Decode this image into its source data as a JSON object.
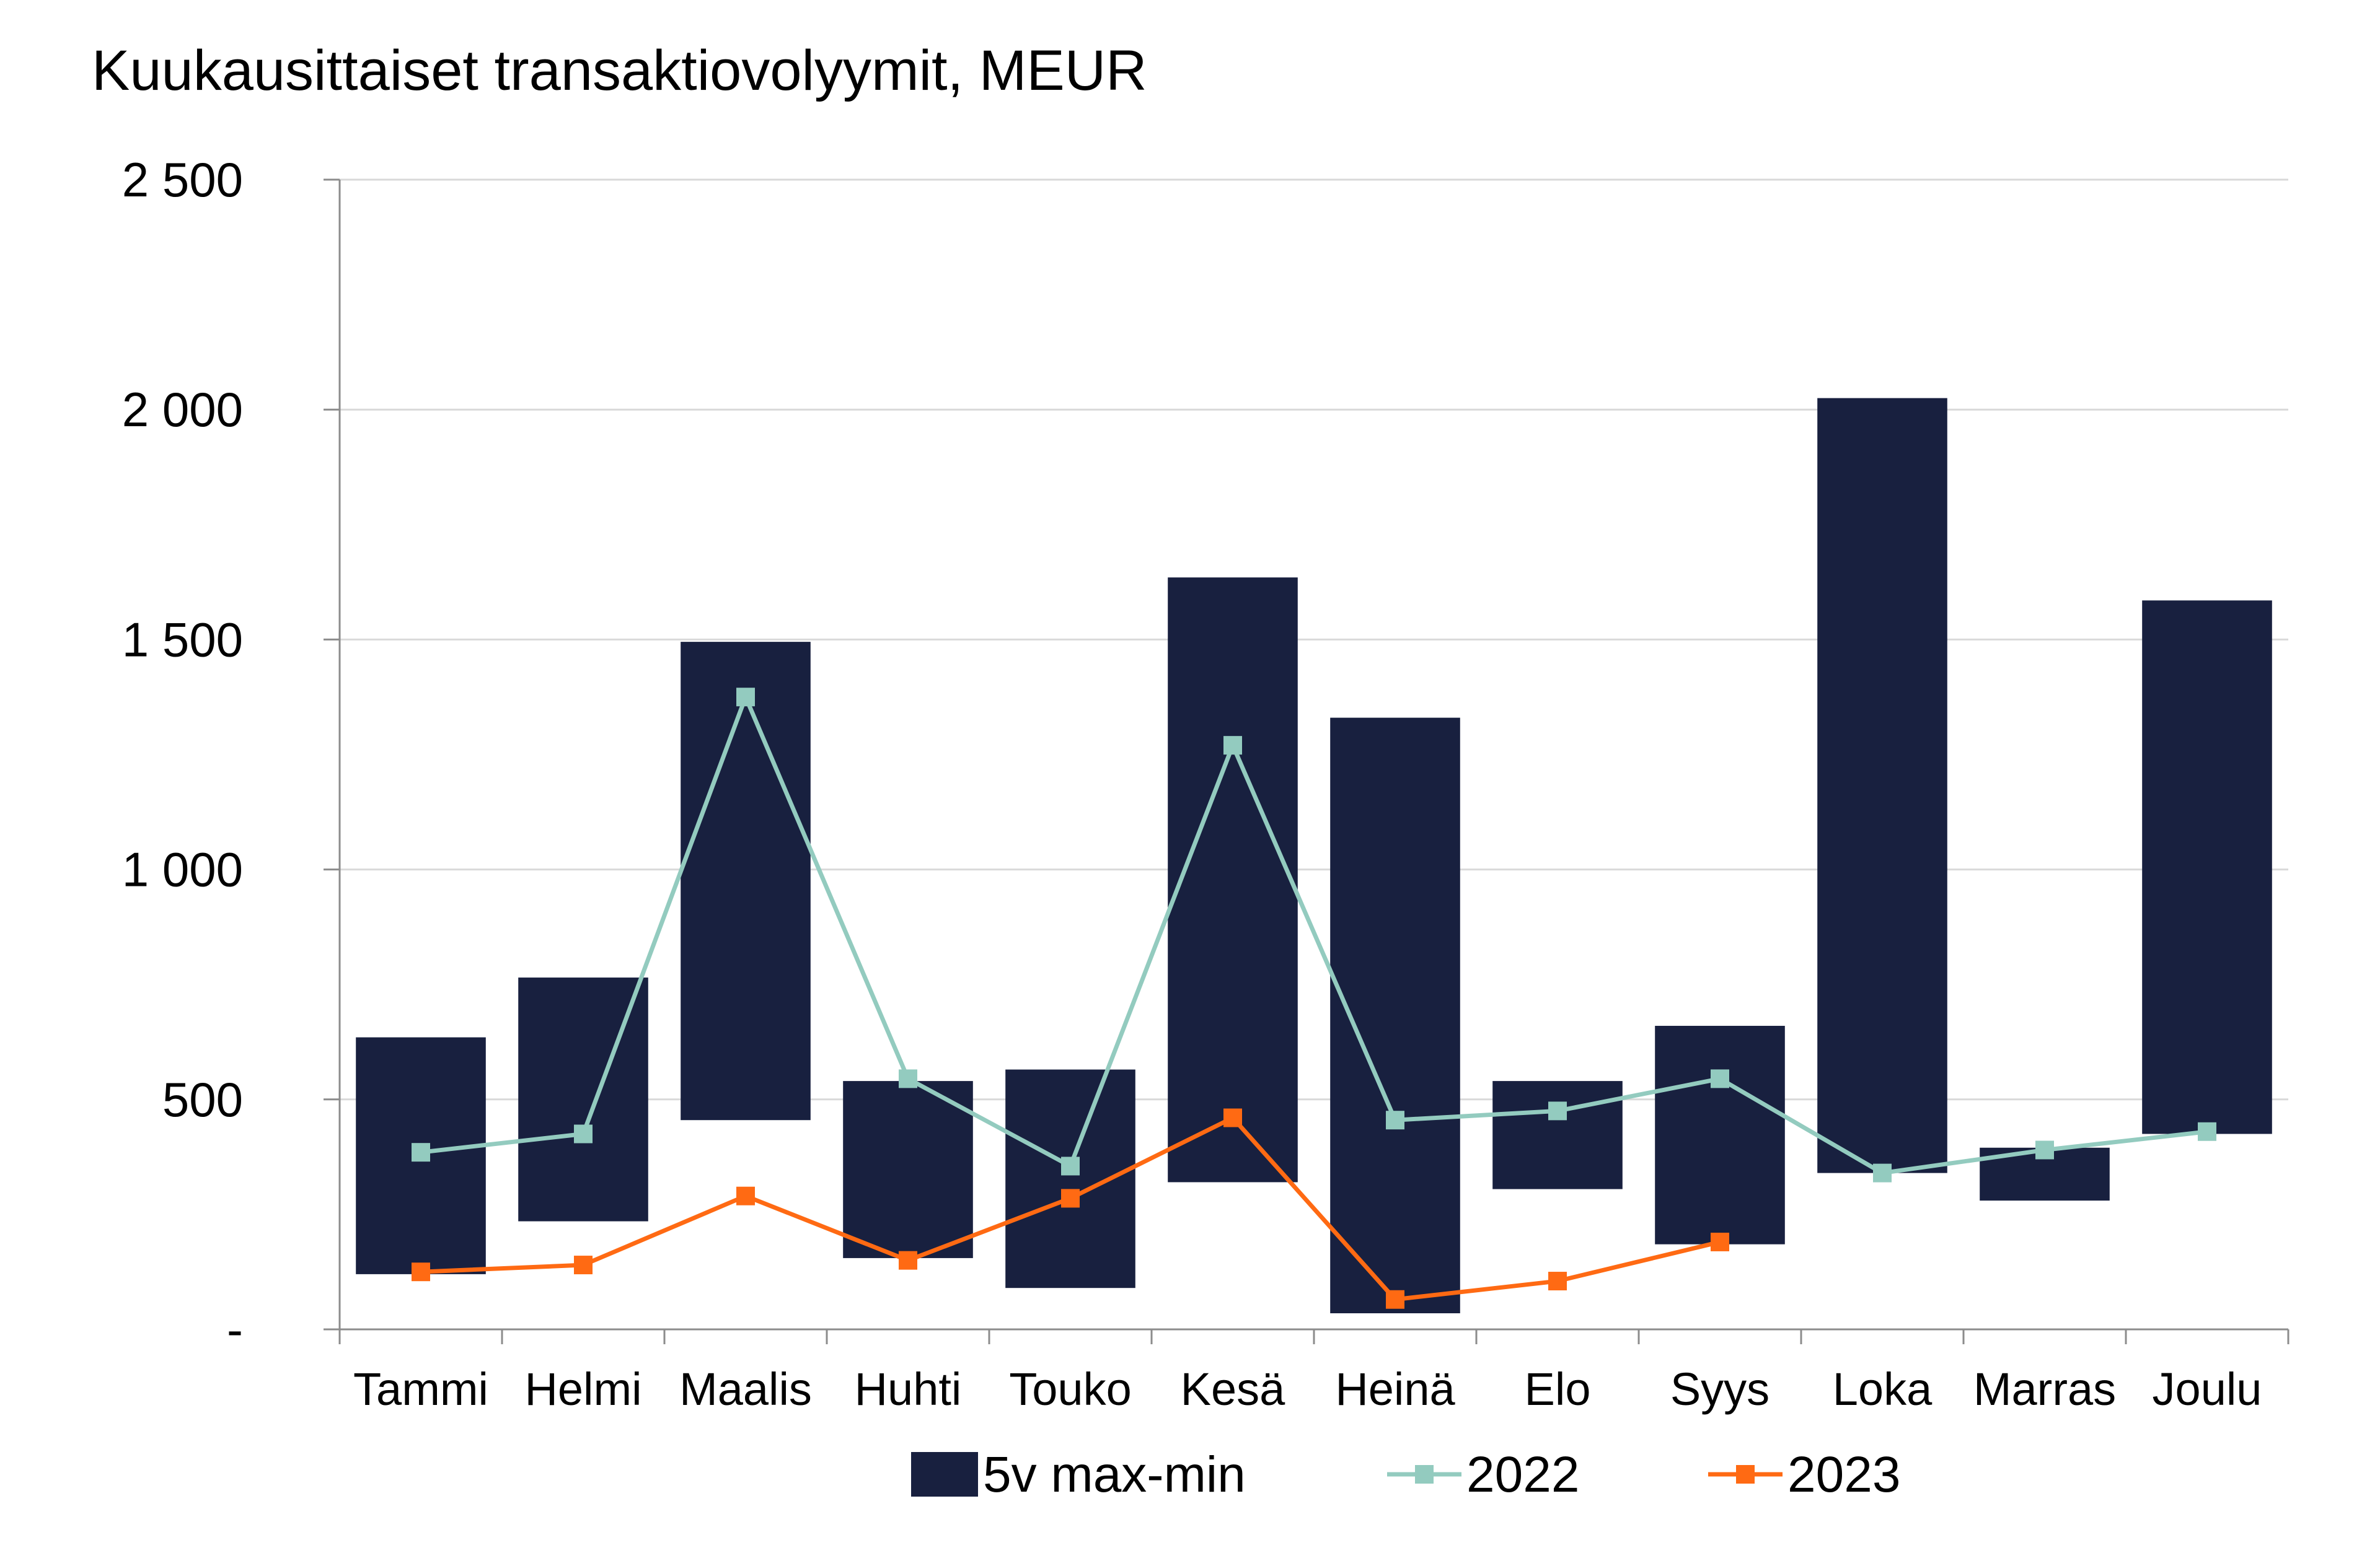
{
  "chart_data": {
    "type": "bar+line",
    "title": "Kuukausittaiset transaktiovolyymit, MEUR",
    "categories": [
      "Tammi",
      "Helmi",
      "Maalis",
      "Huhti",
      "Touko",
      "Kesä",
      "Heinä",
      "Elo",
      "Syys",
      "Loka",
      "Marras",
      "Joulu"
    ],
    "ylim": [
      0,
      2500
    ],
    "yticks": [
      {
        "value": 0,
        "label": "-"
      },
      {
        "value": 500,
        "label": "500"
      },
      {
        "value": 1000,
        "label": "1 000"
      },
      {
        "value": 1500,
        "label": "1 500"
      },
      {
        "value": 2000,
        "label": "2 000"
      },
      {
        "value": 2500,
        "label": "2 500"
      }
    ],
    "grid": true,
    "range_series": {
      "name": "5v max-min",
      "color": "#18203f",
      "min": [
        120,
        235,
        455,
        155,
        90,
        320,
        35,
        305,
        185,
        340,
        280,
        425
      ],
      "max": [
        635,
        765,
        1495,
        540,
        565,
        1635,
        1330,
        540,
        660,
        2025,
        395,
        1585
      ]
    },
    "series": [
      {
        "name": "2022",
        "color": "#93cbbf",
        "values": [
          385,
          425,
          1375,
          545,
          355,
          1270,
          455,
          475,
          545,
          340,
          390,
          430
        ]
      },
      {
        "name": "2023",
        "color": "#ff6a13",
        "values": [
          125,
          140,
          290,
          150,
          285,
          460,
          65,
          105,
          190,
          null,
          null,
          null
        ]
      }
    ],
    "legend": [
      "5v max-min",
      "2022",
      "2023"
    ],
    "legend_position": "bottom"
  }
}
